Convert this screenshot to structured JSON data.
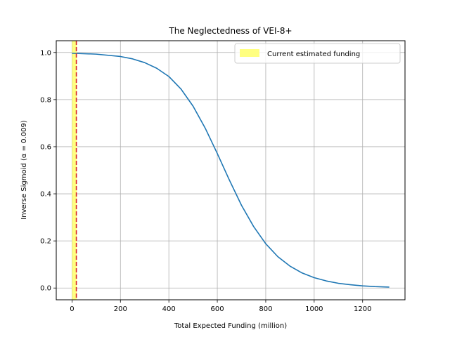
{
  "chart_data": {
    "type": "line",
    "title": "The Neglectedness of VEI-8+",
    "xlabel": "Total Expected Funding (million)",
    "ylabel": "Inverse Sigmoid (α = 0.009)",
    "xlim": [
      -65,
      1375
    ],
    "ylim": [
      -0.05,
      1.05
    ],
    "xticks": [
      0,
      200,
      400,
      600,
      800,
      1000,
      1200
    ],
    "yticks": [
      0.0,
      0.2,
      0.4,
      0.6,
      0.8,
      1.0
    ],
    "xtick_labels": [
      "0",
      "200",
      "400",
      "600",
      "800",
      "1000",
      "1200"
    ],
    "ytick_labels": [
      "0.0",
      "0.2",
      "0.4",
      "0.6",
      "0.8",
      "1.0"
    ],
    "grid": true,
    "legend_position": "upper-right",
    "series": [
      {
        "color": "#1f77b4",
        "x": [
          0,
          100,
          200,
          250,
          300,
          350,
          400,
          450,
          500,
          550,
          600,
          650,
          700,
          750,
          800,
          850,
          900,
          950,
          1000,
          1050,
          1100,
          1150,
          1200,
          1250,
          1310
        ],
        "y": [
          0.997,
          0.993,
          0.983,
          0.973,
          0.957,
          0.933,
          0.898,
          0.845,
          0.772,
          0.679,
          0.571,
          0.458,
          0.351,
          0.261,
          0.188,
          0.133,
          0.093,
          0.064,
          0.044,
          0.03,
          0.02,
          0.014,
          0.009,
          0.006,
          0.004
        ]
      }
    ],
    "highlight_band": {
      "label": "Current estimated funding",
      "x_range": [
        0,
        20
      ],
      "color": "#ffff80"
    },
    "reference_line": {
      "x": 18,
      "color": "#d62728",
      "style": "dashed"
    }
  }
}
